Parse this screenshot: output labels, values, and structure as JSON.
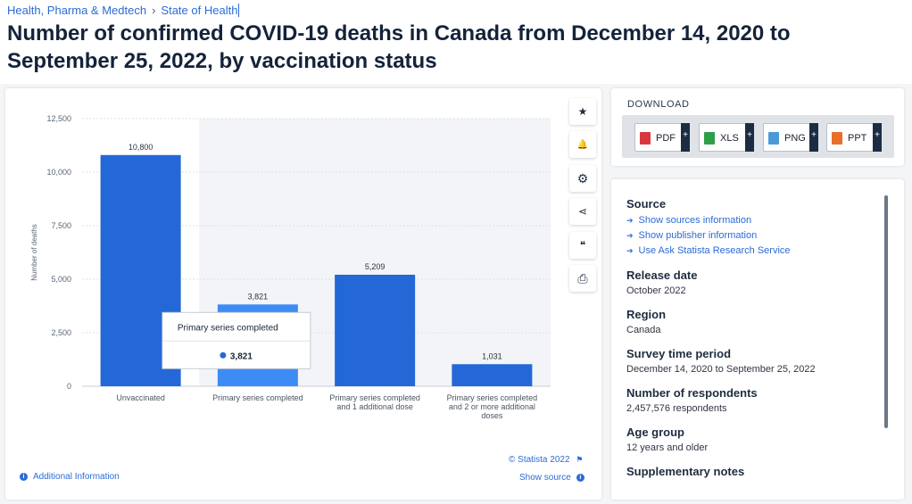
{
  "breadcrumb": [
    "Health, Pharma & Medtech",
    "State of Health"
  ],
  "title": "Number of confirmed COVID-19 deaths in Canada from December 14, 2020 to September 25, 2022, by vaccination status",
  "chart_data": {
    "type": "bar",
    "categories": [
      "Unvaccinated",
      "Primary series completed",
      "Primary series completed and 1 additional dose",
      "Primary series completed and 2 or more additional doses"
    ],
    "category_lines": [
      [
        "Unvaccinated"
      ],
      [
        "Primary series completed"
      ],
      [
        "Primary series completed",
        "and 1 additional dose"
      ],
      [
        "Primary series completed",
        "and 2 or more additional",
        "doses"
      ]
    ],
    "values": [
      10800,
      3821,
      5209,
      1031
    ],
    "data_labels": [
      "10,800",
      "3,821",
      "5,209",
      "1,031"
    ],
    "ylabel": "Number of deaths",
    "ylim": [
      0,
      12500
    ],
    "yticks": [
      0,
      2500,
      5000,
      7500,
      10000,
      12500
    ],
    "ytick_labels": [
      "0",
      "2,500",
      "5,000",
      "7,500",
      "10,000",
      "12,500"
    ],
    "bar_color": "#2468d8",
    "highlight_color": "#3d8bf5",
    "hover_band_color": "#f2f4f7",
    "tooltip": {
      "title": "Primary series completed",
      "value": "3,821",
      "category_index": 1
    }
  },
  "chart_footer": {
    "credit": "© Statista 2022",
    "additional_info": "Additional Information",
    "show_source": "Show source"
  },
  "toolbar": [
    {
      "name": "favorite",
      "icon": "★"
    },
    {
      "name": "notification",
      "icon": "🔔"
    },
    {
      "name": "settings",
      "icon": "⚙"
    },
    {
      "name": "share",
      "icon": "⋖"
    },
    {
      "name": "cite",
      "icon": "❝"
    },
    {
      "name": "print",
      "icon": "⎙"
    }
  ],
  "download": {
    "title": "DOWNLOAD",
    "buttons": [
      {
        "label": "PDF",
        "color": "#d9363e"
      },
      {
        "label": "XLS",
        "color": "#2e9e48"
      },
      {
        "label": "PNG",
        "color": "#4a9ad8"
      },
      {
        "label": "PPT",
        "color": "#e86f2c"
      }
    ]
  },
  "info": {
    "source_title": "Source",
    "source_links": [
      "Show sources information",
      "Show publisher information",
      "Use Ask Statista Research Service"
    ],
    "release_title": "Release date",
    "release": "October 2022",
    "region_title": "Region",
    "region": "Canada",
    "survey_title": "Survey time period",
    "survey": "December 14, 2020 to September 25, 2022",
    "respondents_title": "Number of respondents",
    "respondents": "2,457,576 respondents",
    "age_title": "Age group",
    "age": "12 years and older",
    "notes_title": "Supplementary notes"
  }
}
